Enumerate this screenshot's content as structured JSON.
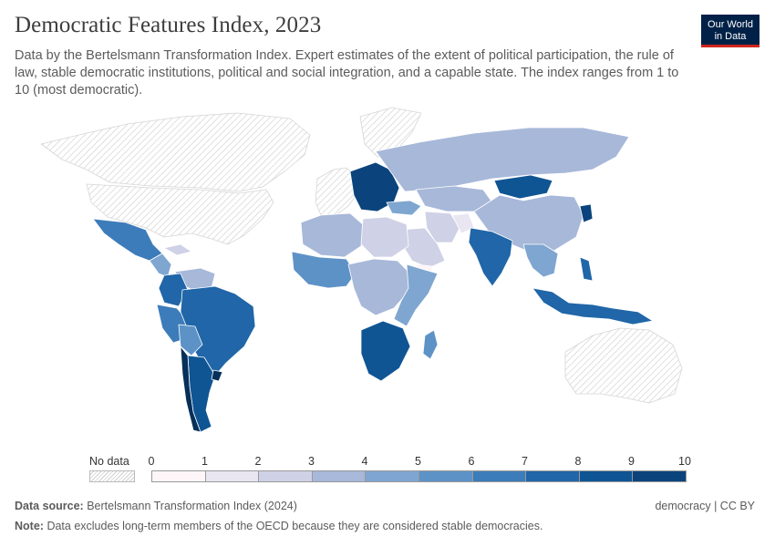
{
  "header": {
    "title": "Democratic Features Index, 2023",
    "subtitle": "Data by the Bertelsmann Transformation Index. Expert estimates of the extent of political participation, the rule of law, stable democratic institutions, political and social integration, and a capable state. The index ranges from 1 to 10 (most democratic).",
    "logo_line1": "Our World",
    "logo_line2": "in Data"
  },
  "legend": {
    "no_data_label": "No data",
    "ticks": [
      "0",
      "1",
      "2",
      "3",
      "4",
      "5",
      "6",
      "7",
      "8",
      "9",
      "10"
    ],
    "colors": [
      "#fdf5f8",
      "#e9e6f2",
      "#cfd1e6",
      "#a7b8d9",
      "#7ea6d0",
      "#5d92c7",
      "#3d7cba",
      "#2066a8",
      "#0f5594",
      "#0b447c",
      "#062f59"
    ]
  },
  "regions": [
    {
      "id": "greenland",
      "fill": "#ffffff"
    },
    {
      "id": "canada",
      "fill": "#ffffff"
    },
    {
      "id": "usa",
      "fill": "#ffffff"
    },
    {
      "id": "mexico",
      "fill": "#3d7cba"
    },
    {
      "id": "central-america",
      "fill": "#7ea6d0"
    },
    {
      "id": "cuba",
      "fill": "#cfd1e6"
    },
    {
      "id": "venezuela",
      "fill": "#a7b8d9"
    },
    {
      "id": "colombia",
      "fill": "#2066a8"
    },
    {
      "id": "peru",
      "fill": "#3d7cba"
    },
    {
      "id": "bolivia",
      "fill": "#5d92c7"
    },
    {
      "id": "brazil",
      "fill": "#2066a8"
    },
    {
      "id": "argentina",
      "fill": "#0f5594"
    },
    {
      "id": "chile",
      "fill": "#062f59"
    },
    {
      "id": "uruguay",
      "fill": "#062f59"
    },
    {
      "id": "europe-west",
      "fill": "#ffffff"
    },
    {
      "id": "europe-east",
      "fill": "#0b447c"
    },
    {
      "id": "russia",
      "fill": "#a7b8d9"
    },
    {
      "id": "kazakhstan",
      "fill": "#a7b8d9"
    },
    {
      "id": "mongolia",
      "fill": "#0f5594"
    },
    {
      "id": "china",
      "fill": "#a7b8d9"
    },
    {
      "id": "korea",
      "fill": "#0b447c"
    },
    {
      "id": "turkey",
      "fill": "#7ea6d0"
    },
    {
      "id": "iran",
      "fill": "#cfd1e6"
    },
    {
      "id": "afghanistan",
      "fill": "#e9e6f2"
    },
    {
      "id": "saudi",
      "fill": "#cfd1e6"
    },
    {
      "id": "yemen",
      "fill": "#fdf5f8"
    },
    {
      "id": "india",
      "fill": "#2066a8"
    },
    {
      "id": "southeast-asia",
      "fill": "#7ea6d0"
    },
    {
      "id": "indonesia",
      "fill": "#2066a8"
    },
    {
      "id": "philippines",
      "fill": "#2066a8"
    },
    {
      "id": "australia",
      "fill": "#ffffff"
    },
    {
      "id": "north-africa",
      "fill": "#a7b8d9"
    },
    {
      "id": "libya-egypt",
      "fill": "#cfd1e6"
    },
    {
      "id": "west-africa",
      "fill": "#5d92c7"
    },
    {
      "id": "central-africa",
      "fill": "#a7b8d9"
    },
    {
      "id": "east-africa",
      "fill": "#7ea6d0"
    },
    {
      "id": "southern-africa",
      "fill": "#0f5594"
    },
    {
      "id": "madagascar",
      "fill": "#5d92c7"
    }
  ],
  "footer": {
    "source_label": "Data source:",
    "source_value": "Bertelsmann Transformation Index (2024)",
    "note_label": "Note:",
    "note_value": "Data excludes long-term members of the OECD because they are considered stable democracies.",
    "right": "democracy | CC BY"
  }
}
